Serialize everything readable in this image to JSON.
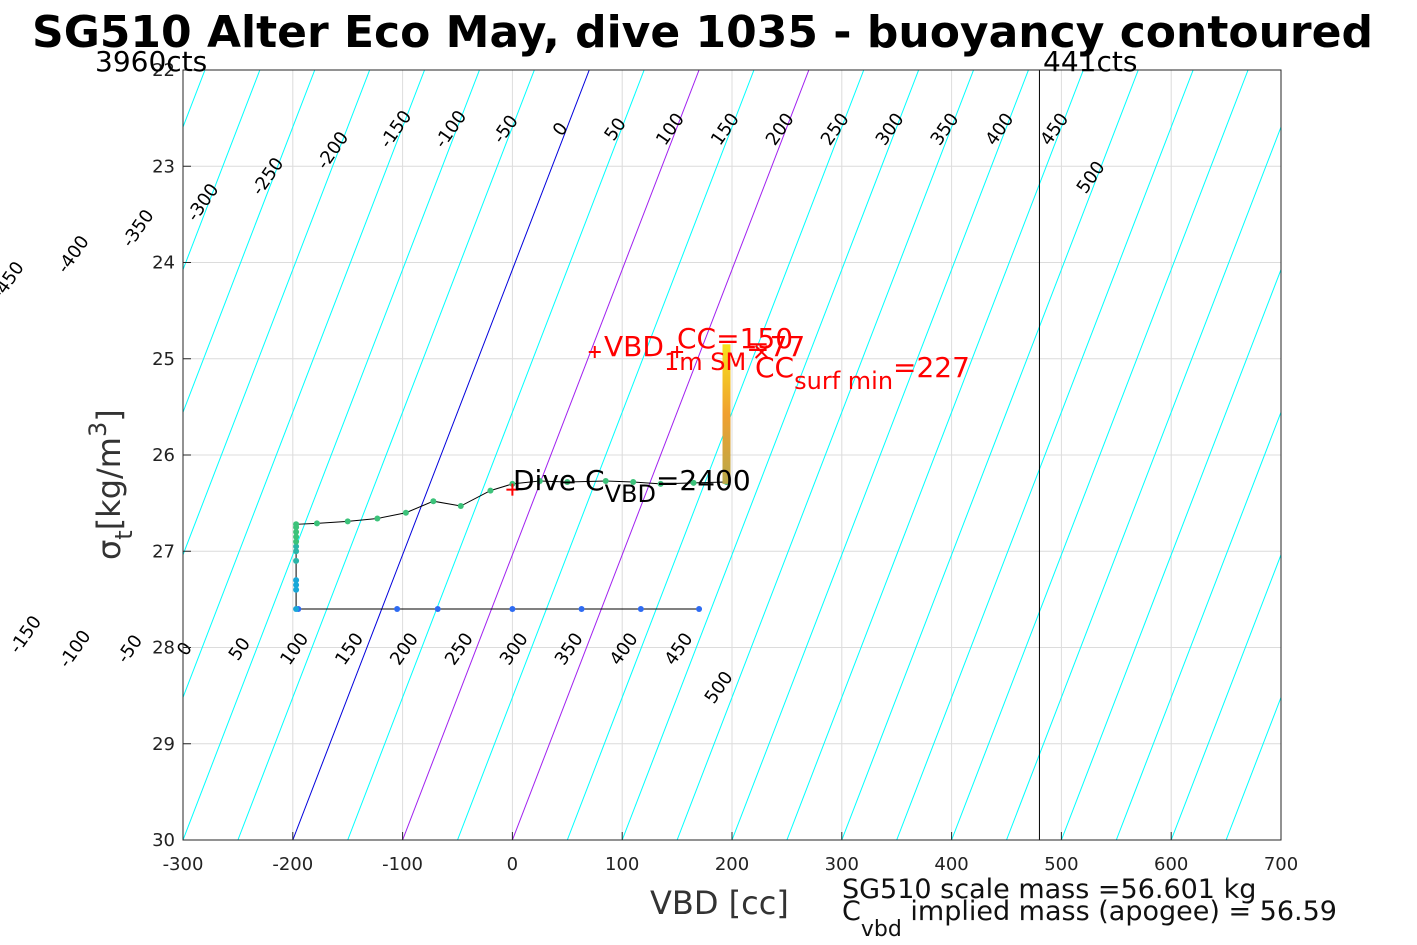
{
  "chart_data": {
    "type": "scatter",
    "title": "SG510 Alter Eco May, dive 1035 - buoyancy contoured",
    "xlabel": "VBD [cc]",
    "ylabel": {
      "symbol": "σ",
      "subscript": "t",
      "unit": "[kg/m",
      "exp": "3",
      "close": "]"
    },
    "xlim": [
      -300,
      700
    ],
    "ylim": [
      22,
      30
    ],
    "y_reversed": true,
    "grid": true,
    "x_ticks": [
      "-300",
      "-200",
      "-100",
      "0",
      "100",
      "200",
      "300",
      "400",
      "500",
      "600",
      "700"
    ],
    "y_ticks": [
      "22",
      "23",
      "24",
      "25",
      "26",
      "27",
      "28",
      "29",
      "30"
    ],
    "vbd_limits": {
      "left_label": "3960cts",
      "left_value": -300,
      "right_label": "441cts",
      "right_value": 480
    },
    "contour_slope_cc_per_sigma": 100,
    "contours": {
      "cyan_top_labels": [
        "-450",
        "-400",
        "-350",
        "-300",
        "-250",
        "-200",
        "-150",
        "-100",
        "-50",
        "0",
        "50",
        "100",
        "150",
        "200",
        "250",
        "300",
        "350",
        "400",
        "450",
        "500"
      ],
      "cyan_bottom_labels": [
        "-150",
        "-100",
        "-50",
        "0",
        "50",
        "100",
        "150",
        "200",
        "250",
        "300",
        "350",
        "400",
        "450",
        "500"
      ],
      "zero_color": "#0000dd",
      "cyan_color": "#00ffff",
      "magenta_levels": [
        100,
        200
      ],
      "magenta_color": "#a020f0"
    },
    "series": [
      {
        "points": [
          [
            -195,
            27.6
          ],
          [
            -105,
            27.6
          ],
          [
            -68,
            27.6
          ],
          [
            0,
            27.6
          ],
          [
            63,
            27.6
          ],
          [
            117,
            27.6
          ],
          [
            170,
            27.6
          ],
          [
            -197,
            27.6
          ],
          [
            -197,
            27.4
          ],
          [
            -197,
            27.35
          ],
          [
            -197,
            27.3
          ],
          [
            -197,
            27.1
          ],
          [
            -197,
            27.0
          ],
          [
            -197,
            26.95
          ],
          [
            -197,
            26.9
          ],
          [
            -197,
            26.85
          ],
          [
            -197,
            26.8
          ],
          [
            -197,
            26.75
          ],
          [
            -197,
            26.72
          ],
          [
            -178,
            26.71
          ],
          [
            -150,
            26.69
          ],
          [
            -123,
            26.66
          ],
          [
            -97,
            26.6
          ],
          [
            -72,
            26.48
          ],
          [
            -47,
            26.53
          ],
          [
            -20,
            26.37
          ],
          [
            0,
            26.3
          ],
          [
            25,
            26.27
          ],
          [
            50,
            26.28
          ],
          [
            85,
            26.27
          ],
          [
            110,
            26.28
          ],
          [
            135,
            26.3
          ],
          [
            165,
            26.29
          ],
          [
            195,
            26.28
          ]
        ]
      }
    ],
    "vbd_bar": {
      "x": 195,
      "y_top": 24.85,
      "y_bottom": 26.3
    },
    "annotations": {
      "vbd_1m_sm": {
        "text": "VBD",
        "sub": "1m SM",
        "rest": "=77",
        "x": 75
      },
      "cc": {
        "text": "CC",
        "rest": "=150",
        "x": 150
      },
      "cc_surf_min": {
        "text": "CC",
        "sub": "surf min",
        "rest": "=227",
        "x": 227
      },
      "dive_c_vbd": {
        "text": "Dive C",
        "sub": "VBD",
        "rest": "=2400",
        "x": 0
      }
    }
  },
  "footer": {
    "line1": "SG510 scale mass =56.601 kg",
    "line2_main": "C",
    "line2_sub": "vbd",
    "line2_rest": " implied mass (apogee) = 56.59"
  }
}
